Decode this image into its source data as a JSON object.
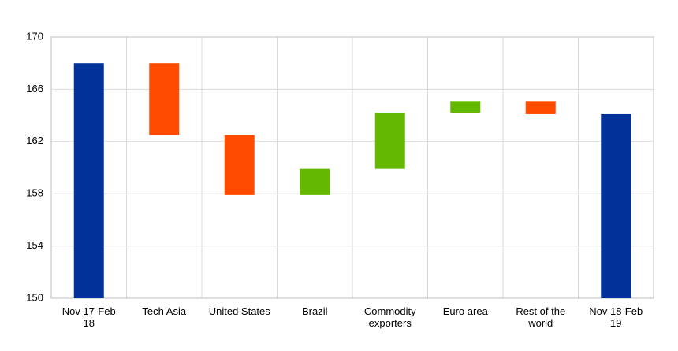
{
  "chart_data": {
    "type": "waterfall",
    "categories": [
      "Nov 17-Feb 18",
      "Tech Asia",
      "United States",
      "Brazil",
      "Commodity exporters",
      "Euro area",
      "Rest of the world",
      "Nov 18-Feb 19"
    ],
    "values": [
      168,
      -5.5,
      -4.6,
      2.0,
      4.3,
      0.9,
      -1.0,
      164.1
    ],
    "is_total": [
      true,
      false,
      false,
      false,
      false,
      false,
      false,
      true
    ],
    "colors": {
      "total": "#003299",
      "increase": "#65b800",
      "decrease": "#ff4b00"
    },
    "ylim": [
      150,
      170
    ],
    "yticks": [
      150,
      154,
      158,
      162,
      166,
      170
    ],
    "grid": true
  }
}
